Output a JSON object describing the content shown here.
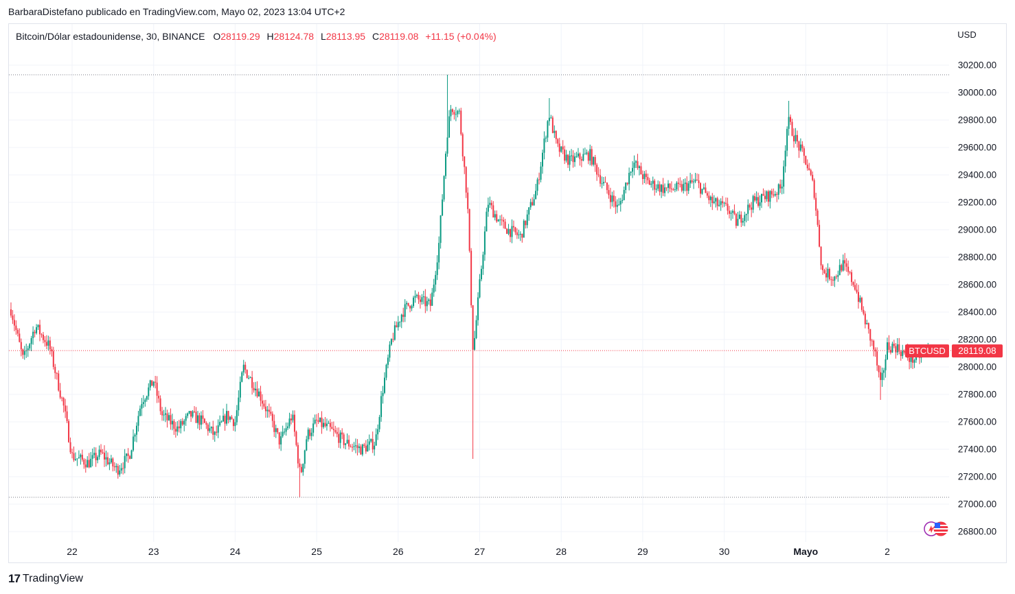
{
  "caption": "BarbaraDistefano publicado en TradingView.com, Mayo 02, 2023 13:04 UTC+2",
  "symbol_line": "Bitcoin/Dólar estadounidense, 30, BINANCE",
  "ohlc": {
    "o_label": "O",
    "o_value": "28119.29",
    "h_label": "H",
    "h_value": "28124.78",
    "l_label": "L",
    "l_value": "28113.95",
    "c_label": "C",
    "c_value": "28119.08",
    "change": "+11.15 (+0.04%)"
  },
  "brand": {
    "mark": "17",
    "name": "TradingView"
  },
  "colors": {
    "up": "#089981",
    "down": "#f23645",
    "grid": "#f0f3fa",
    "axis_text": "#131722",
    "price_tag": "#f23645"
  },
  "chart_data": {
    "type": "candlestick",
    "currency": "USD",
    "timeframe": "30",
    "exchange": "BINANCE",
    "ylim": [
      26700,
      30350
    ],
    "yticks": [
      {
        "value": 30200,
        "label": "30200.00"
      },
      {
        "value": 30000,
        "label": "30000.00"
      },
      {
        "value": 29800,
        "label": "29800.00"
      },
      {
        "value": 29600,
        "label": "29600.00"
      },
      {
        "value": 29400,
        "label": "29400.00"
      },
      {
        "value": 29200,
        "label": "29200.00"
      },
      {
        "value": 29000,
        "label": "29000.00"
      },
      {
        "value": 28800,
        "label": "28800.00"
      },
      {
        "value": 28600,
        "label": "28600.00"
      },
      {
        "value": 28400,
        "label": "28400.00"
      },
      {
        "value": 28200,
        "label": "28200.00"
      },
      {
        "value": 28000,
        "label": "28000.00"
      },
      {
        "value": 27800,
        "label": "27800.00"
      },
      {
        "value": 27600,
        "label": "27600.00"
      },
      {
        "value": 27400,
        "label": "27400.00"
      },
      {
        "value": 27200,
        "label": "27200.00"
      },
      {
        "value": 27000,
        "label": "27000.00"
      },
      {
        "value": 26800,
        "label": "26800.00"
      }
    ],
    "xticks": [
      "22",
      "23",
      "24",
      "25",
      "26",
      "27",
      "28",
      "29",
      "30",
      "Mayo",
      "2"
    ],
    "xtick_bold": "Mayo",
    "x_start_day": 21.25,
    "x_end_day": 32.7,
    "period_high": 30130,
    "period_low": 27050,
    "last_price": {
      "value": 28119.08,
      "label": "28119.08",
      "tag": "BTCUSD"
    },
    "anchors": [
      [
        21.25,
        28420
      ],
      [
        21.4,
        28050
      ],
      [
        21.55,
        28300
      ],
      [
        21.72,
        28150
      ],
      [
        21.9,
        27700
      ],
      [
        22.0,
        27350
      ],
      [
        22.2,
        27300
      ],
      [
        22.35,
        27370
      ],
      [
        22.55,
        27250
      ],
      [
        22.7,
        27350
      ],
      [
        22.85,
        27750
      ],
      [
        23.0,
        27900
      ],
      [
        23.1,
        27650
      ],
      [
        23.3,
        27550
      ],
      [
        23.45,
        27650
      ],
      [
        23.6,
        27600
      ],
      [
        23.75,
        27500
      ],
      [
        23.9,
        27650
      ],
      [
        24.0,
        27600
      ],
      [
        24.1,
        28000
      ],
      [
        24.3,
        27800
      ],
      [
        24.45,
        27600
      ],
      [
        24.55,
        27450
      ],
      [
        24.7,
        27650
      ],
      [
        24.8,
        27200
      ],
      [
        24.88,
        27500
      ],
      [
        25.0,
        27600
      ],
      [
        25.15,
        27550
      ],
      [
        25.35,
        27450
      ],
      [
        25.55,
        27400
      ],
      [
        25.72,
        27450
      ],
      [
        25.8,
        27800
      ],
      [
        25.92,
        28200
      ],
      [
        26.05,
        28400
      ],
      [
        26.2,
        28500
      ],
      [
        26.4,
        28450
      ],
      [
        26.5,
        28900
      ],
      [
        26.6,
        29700
      ],
      [
        26.65,
        29900
      ],
      [
        26.75,
        29850
      ],
      [
        26.85,
        29200
      ],
      [
        26.92,
        28100
      ],
      [
        27.0,
        28600
      ],
      [
        27.1,
        29200
      ],
      [
        27.25,
        29050
      ],
      [
        27.35,
        29000
      ],
      [
        27.5,
        28950
      ],
      [
        27.7,
        29300
      ],
      [
        27.85,
        29850
      ],
      [
        27.95,
        29600
      ],
      [
        28.1,
        29500
      ],
      [
        28.35,
        29550
      ],
      [
        28.5,
        29350
      ],
      [
        28.7,
        29150
      ],
      [
        28.88,
        29500
      ],
      [
        29.05,
        29350
      ],
      [
        29.25,
        29300
      ],
      [
        29.45,
        29300
      ],
      [
        29.65,
        29350
      ],
      [
        29.85,
        29200
      ],
      [
        30.05,
        29150
      ],
      [
        30.15,
        29050
      ],
      [
        30.35,
        29200
      ],
      [
        30.55,
        29250
      ],
      [
        30.7,
        29300
      ],
      [
        30.78,
        29800
      ],
      [
        30.88,
        29650
      ],
      [
        31.0,
        29500
      ],
      [
        31.1,
        29300
      ],
      [
        31.2,
        28700
      ],
      [
        31.35,
        28650
      ],
      [
        31.45,
        28750
      ],
      [
        31.6,
        28600
      ],
      [
        31.72,
        28350
      ],
      [
        31.85,
        28100
      ],
      [
        31.92,
        27850
      ],
      [
        32.0,
        28150
      ],
      [
        32.1,
        28150
      ],
      [
        32.3,
        28050
      ],
      [
        32.5,
        28119
      ]
    ]
  }
}
